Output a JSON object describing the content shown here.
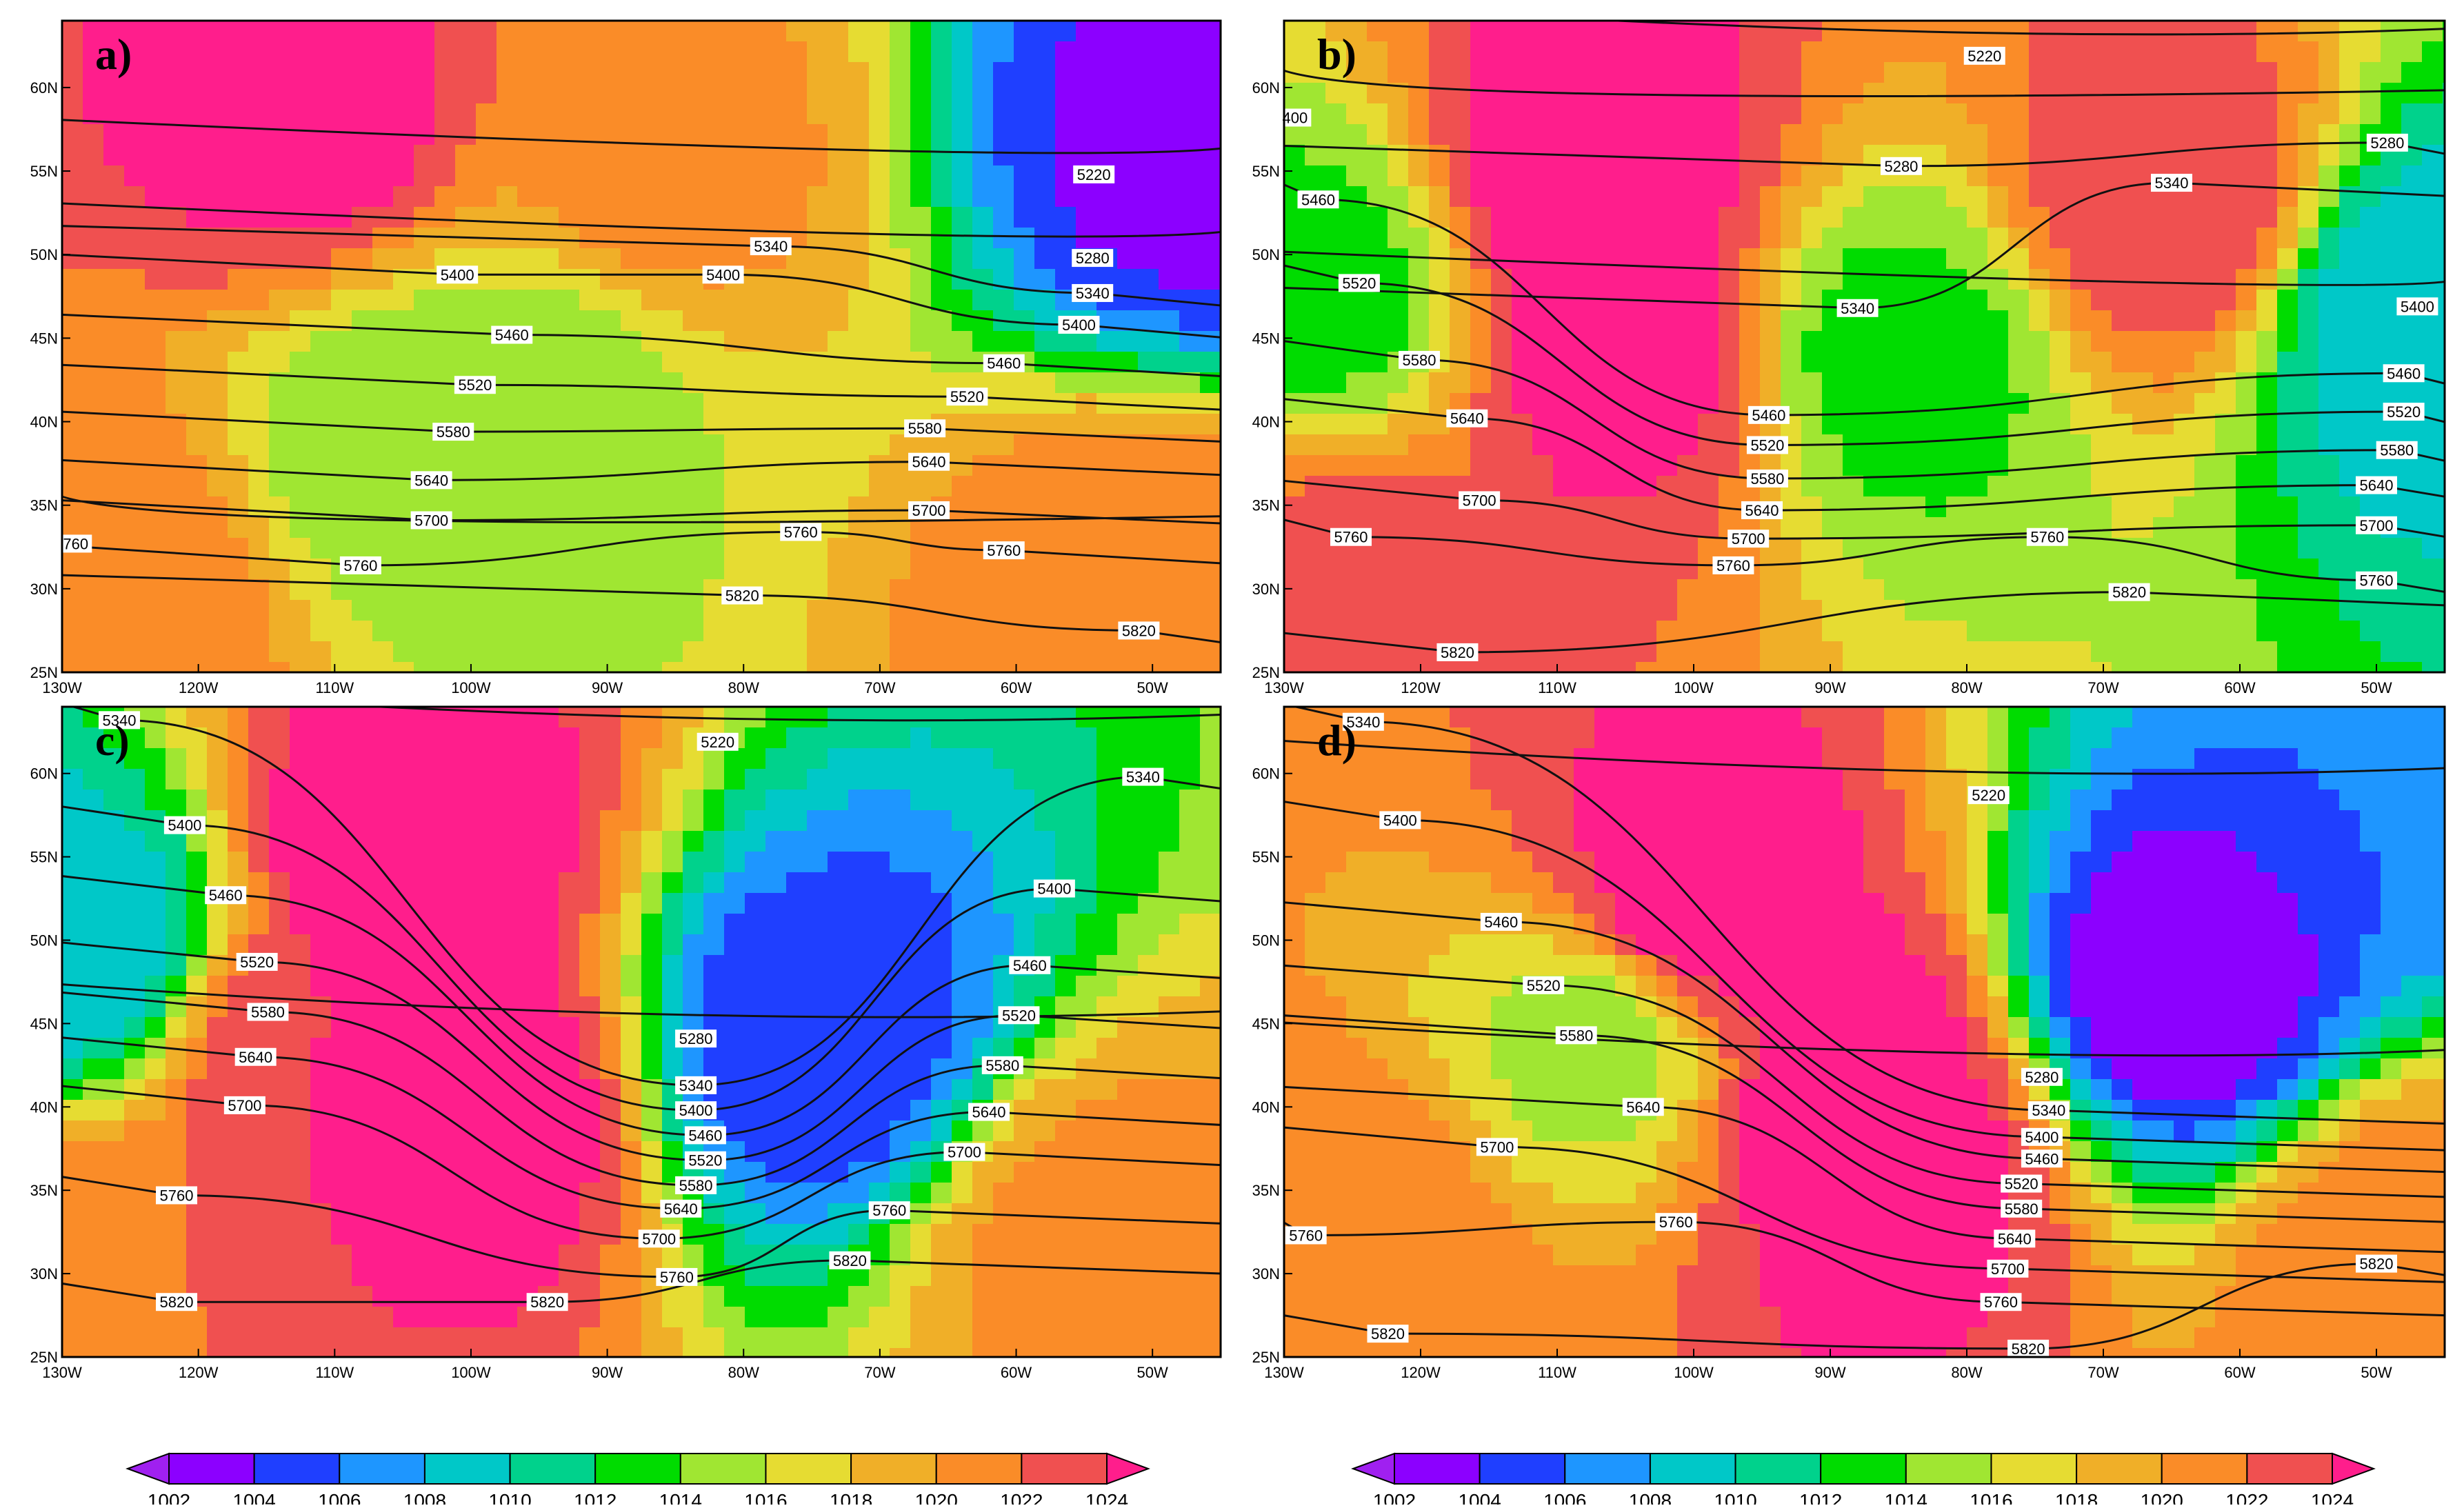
{
  "figure": {
    "panels": [
      {
        "id": "a",
        "label": "a)",
        "contour_labels": [
          "5220",
          "5340",
          "5400",
          "5400",
          "5280",
          "5340",
          "5400",
          "5460",
          "5460",
          "5520",
          "5520",
          "5580",
          "5580",
          "5640",
          "5640",
          "5700",
          "5700",
          "760",
          "5760",
          "5760",
          "5760",
          "5820",
          "5820"
        ],
        "contour_label_points": [
          {
            "text": "5220",
            "lon": -54.3,
            "lat": 54.8
          },
          {
            "text": "5340",
            "lon": -78.0,
            "lat": 50.5
          },
          {
            "text": "5400",
            "lon": -101.0,
            "lat": 48.8
          },
          {
            "text": "5400",
            "lon": -81.5,
            "lat": 48.8
          },
          {
            "text": "5280",
            "lon": -54.4,
            "lat": 49.8
          },
          {
            "text": "5340",
            "lon": -54.4,
            "lat": 47.7
          },
          {
            "text": "5400",
            "lon": -55.4,
            "lat": 45.8
          },
          {
            "text": "5460",
            "lon": -97.0,
            "lat": 45.2
          },
          {
            "text": "5460",
            "lon": -60.9,
            "lat": 43.5
          },
          {
            "text": "5520",
            "lon": -99.7,
            "lat": 42.2
          },
          {
            "text": "5520",
            "lon": -63.6,
            "lat": 41.5
          },
          {
            "text": "5580",
            "lon": -101.3,
            "lat": 39.4
          },
          {
            "text": "5580",
            "lon": -66.7,
            "lat": 39.6
          },
          {
            "text": "5640",
            "lon": -102.9,
            "lat": 36.5
          },
          {
            "text": "5640",
            "lon": -66.4,
            "lat": 37.6
          },
          {
            "text": "5700",
            "lon": -102.9,
            "lat": 34.1
          },
          {
            "text": "5700",
            "lon": -66.4,
            "lat": 34.7
          },
          {
            "text": "760",
            "lon": -129.0,
            "lat": 32.7
          },
          {
            "text": "5760",
            "lon": -108.1,
            "lat": 31.4
          },
          {
            "text": "5760",
            "lon": -75.8,
            "lat": 33.4
          },
          {
            "text": "5760",
            "lon": -60.9,
            "lat": 32.3
          },
          {
            "text": "5820",
            "lon": -80.1,
            "lat": 29.6
          },
          {
            "text": "5820",
            "lon": -51.0,
            "lat": 27.5
          }
        ],
        "pressure_centers": [
          {
            "kind": "high",
            "lon": -112,
            "lat": 58,
            "hpa": 1025
          },
          {
            "kind": "high",
            "lon": -87,
            "lat": 55,
            "hpa": 1021
          },
          {
            "kind": "low",
            "lon": -46,
            "lat": 56,
            "hpa": 1003
          },
          {
            "kind": "low",
            "lon": -104,
            "lat": 39,
            "hpa": 1014
          },
          {
            "kind": "low",
            "lon": -95,
            "lat": 42,
            "hpa": 1015
          },
          {
            "kind": "high",
            "lon": -127,
            "lat": 30,
            "hpa": 1022
          },
          {
            "kind": "high",
            "lon": -50,
            "lat": 30,
            "hpa": 1022
          }
        ]
      },
      {
        "id": "b",
        "label": "b)",
        "contour_labels": [
          "5220",
          "5280",
          "5280",
          "5340",
          "5340",
          "400",
          "5460",
          "5520",
          "5580",
          "5640",
          "5400",
          "5460",
          "5460",
          "5520",
          "5520",
          "5580",
          "5580",
          "5640",
          "5640",
          "5700",
          "5700",
          "5700",
          "5760",
          "5760",
          "5760",
          "5760",
          "5820",
          "5820"
        ],
        "contour_label_points": [
          {
            "text": "5220",
            "lon": -78.7,
            "lat": 61.9
          },
          {
            "text": "5280",
            "lon": -84.8,
            "lat": 55.3
          },
          {
            "text": "5280",
            "lon": -49.2,
            "lat": 56.7
          },
          {
            "text": "5340",
            "lon": -65.0,
            "lat": 54.3
          },
          {
            "text": "5340",
            "lon": -88.0,
            "lat": 46.8
          },
          {
            "text": "400",
            "lon": -129.2,
            "lat": 58.2
          },
          {
            "text": "5460",
            "lon": -127.5,
            "lat": 53.3
          },
          {
            "text": "5520",
            "lon": -124.5,
            "lat": 48.3
          },
          {
            "text": "5580",
            "lon": -120.1,
            "lat": 43.7
          },
          {
            "text": "5640",
            "lon": -116.6,
            "lat": 40.2
          },
          {
            "text": "5400",
            "lon": -47.0,
            "lat": 46.9
          },
          {
            "text": "5460",
            "lon": -94.5,
            "lat": 40.4
          },
          {
            "text": "5460",
            "lon": -48.0,
            "lat": 42.9
          },
          {
            "text": "5520",
            "lon": -94.6,
            "lat": 38.6
          },
          {
            "text": "5520",
            "lon": -48.0,
            "lat": 40.6
          },
          {
            "text": "5580",
            "lon": -94.6,
            "lat": 36.6
          },
          {
            "text": "5580",
            "lon": -48.5,
            "lat": 38.3
          },
          {
            "text": "5640",
            "lon": -95.0,
            "lat": 34.7
          },
          {
            "text": "5640",
            "lon": -50.0,
            "lat": 36.2
          },
          {
            "text": "5700",
            "lon": -115.7,
            "lat": 35.3
          },
          {
            "text": "5700",
            "lon": -96.0,
            "lat": 33.0
          },
          {
            "text": "5700",
            "lon": -50.0,
            "lat": 33.8
          },
          {
            "text": "5760",
            "lon": -125.1,
            "lat": 33.1
          },
          {
            "text": "5760",
            "lon": -97.1,
            "lat": 31.4
          },
          {
            "text": "5760",
            "lon": -74.1,
            "lat": 33.1
          },
          {
            "text": "5760",
            "lon": -50.0,
            "lat": 30.5
          },
          {
            "text": "5820",
            "lon": -68.1,
            "lat": 29.8
          },
          {
            "text": "5820",
            "lon": -117.3,
            "lat": 26.2
          }
        ],
        "pressure_centers": [
          {
            "kind": "high",
            "lon": -108,
            "lat": 54,
            "hpa": 1026
          },
          {
            "kind": "high",
            "lon": -105,
            "lat": 44,
            "hpa": 1025
          },
          {
            "kind": "high",
            "lon": -65,
            "lat": 53,
            "hpa": 1024
          },
          {
            "kind": "low",
            "lon": -85,
            "lat": 44,
            "hpa": 1013
          },
          {
            "kind": "low",
            "lon": -47,
            "lat": 47,
            "hpa": 1008
          },
          {
            "kind": "low",
            "lon": -127,
            "lat": 48,
            "hpa": 1013
          },
          {
            "kind": "high",
            "lon": -125,
            "lat": 30,
            "hpa": 1023
          }
        ]
      },
      {
        "id": "c",
        "label": "c)",
        "contour_labels": [
          "5340",
          "5220",
          "5340",
          "5400",
          "5460",
          "5520",
          "5580",
          "5640",
          "5700",
          "5760",
          "5820",
          "5400",
          "5460",
          "5520",
          "5580",
          "5640",
          "5700",
          "5760",
          "5820",
          "5280",
          "5340",
          "5400",
          "5460",
          "5520",
          "5580",
          "5640",
          "5700",
          "5760",
          "5820"
        ],
        "contour_label_points": [
          {
            "text": "5340",
            "lon": -125.8,
            "lat": 63.2
          },
          {
            "text": "5220",
            "lon": -81.9,
            "lat": 61.9
          },
          {
            "text": "5340",
            "lon": -50.7,
            "lat": 59.8
          },
          {
            "text": "5400",
            "lon": -121.0,
            "lat": 56.9
          },
          {
            "text": "5460",
            "lon": -118.0,
            "lat": 52.7
          },
          {
            "text": "5520",
            "lon": -115.7,
            "lat": 48.7
          },
          {
            "text": "5580",
            "lon": -114.9,
            "lat": 45.7
          },
          {
            "text": "5640",
            "lon": -115.8,
            "lat": 43.0
          },
          {
            "text": "5700",
            "lon": -116.6,
            "lat": 40.1
          },
          {
            "text": "5760",
            "lon": -121.6,
            "lat": 34.7
          },
          {
            "text": "5820",
            "lon": -121.6,
            "lat": 28.3
          },
          {
            "text": "5400",
            "lon": -57.2,
            "lat": 53.1
          },
          {
            "text": "5460",
            "lon": -59.0,
            "lat": 48.5
          },
          {
            "text": "5520",
            "lon": -59.8,
            "lat": 45.5
          },
          {
            "text": "5580",
            "lon": -61.0,
            "lat": 42.5
          },
          {
            "text": "5640",
            "lon": -62.0,
            "lat": 39.7
          },
          {
            "text": "5700",
            "lon": -63.8,
            "lat": 37.3
          },
          {
            "text": "5760",
            "lon": -69.3,
            "lat": 33.8
          },
          {
            "text": "5820",
            "lon": -72.2,
            "lat": 30.8
          },
          {
            "text": "5280",
            "lon": -83.5,
            "lat": 44.1
          },
          {
            "text": "5340",
            "lon": -83.5,
            "lat": 41.3
          },
          {
            "text": "5400",
            "lon": -83.5,
            "lat": 39.8
          },
          {
            "text": "5460",
            "lon": -82.8,
            "lat": 38.3
          },
          {
            "text": "5520",
            "lon": -82.8,
            "lat": 36.8
          },
          {
            "text": "5580",
            "lon": -83.5,
            "lat": 35.3
          },
          {
            "text": "5640",
            "lon": -84.6,
            "lat": 33.9
          },
          {
            "text": "5700",
            "lon": -86.2,
            "lat": 32.1
          },
          {
            "text": "5760",
            "lon": -84.9,
            "lat": 29.8
          },
          {
            "text": "5820",
            "lon": -94.4,
            "lat": 28.3
          }
        ],
        "pressure_centers": [
          {
            "kind": "high",
            "lon": -105,
            "lat": 55,
            "hpa": 1026
          },
          {
            "kind": "high",
            "lon": -100,
            "lat": 40,
            "hpa": 1026
          },
          {
            "kind": "high",
            "lon": -112,
            "lat": 43,
            "hpa": 1024
          },
          {
            "kind": "low",
            "lon": -75,
            "lat": 44,
            "hpa": 1004
          },
          {
            "kind": "low",
            "lon": -129,
            "lat": 50,
            "hpa": 1008
          },
          {
            "kind": "high",
            "lon": -127,
            "lat": 30,
            "hpa": 1022
          },
          {
            "kind": "high",
            "lon": -54,
            "lat": 32,
            "hpa": 1021
          }
        ]
      },
      {
        "id": "d",
        "label": "d)",
        "contour_labels": [
          "5340",
          "5220",
          "5400",
          "5460",
          "5520",
          "5580",
          "5640",
          "5700",
          "5760",
          "5760",
          "5820",
          "5820",
          "5280",
          "5340",
          "5400",
          "5460",
          "5520",
          "5580",
          "5640",
          "5700",
          "5760",
          "5820"
        ],
        "contour_label_points": [
          {
            "text": "5340",
            "lon": -124.2,
            "lat": 63.1
          },
          {
            "text": "5220",
            "lon": -78.4,
            "lat": 58.7
          },
          {
            "text": "5400",
            "lon": -121.5,
            "lat": 57.2
          },
          {
            "text": "5460",
            "lon": -114.1,
            "lat": 51.1
          },
          {
            "text": "5520",
            "lon": -111.0,
            "lat": 47.3
          },
          {
            "text": "5580",
            "lon": -108.6,
            "lat": 44.3
          },
          {
            "text": "5640",
            "lon": -103.7,
            "lat": 40.0
          },
          {
            "text": "5700",
            "lon": -114.4,
            "lat": 37.6
          },
          {
            "text": "5760",
            "lon": -101.3,
            "lat": 33.1
          },
          {
            "text": "5760",
            "lon": -128.4,
            "lat": 32.3
          },
          {
            "text": "5820",
            "lon": -122.4,
            "lat": 26.4
          },
          {
            "text": "5820",
            "lon": -50.0,
            "lat": 30.6
          },
          {
            "text": "5280",
            "lon": -74.5,
            "lat": 41.8
          },
          {
            "text": "5340",
            "lon": -74.0,
            "lat": 39.8
          },
          {
            "text": "5400",
            "lon": -74.5,
            "lat": 38.2
          },
          {
            "text": "5460",
            "lon": -74.5,
            "lat": 36.9
          },
          {
            "text": "5520",
            "lon": -76.0,
            "lat": 35.4
          },
          {
            "text": "5580",
            "lon": -76.0,
            "lat": 33.9
          },
          {
            "text": "5640",
            "lon": -76.5,
            "lat": 32.1
          },
          {
            "text": "5700",
            "lon": -77.0,
            "lat": 30.3
          },
          {
            "text": "5760",
            "lon": -77.5,
            "lat": 28.3
          },
          {
            "text": "5820",
            "lon": -75.5,
            "lat": 25.5
          }
        ],
        "pressure_centers": [
          {
            "kind": "high",
            "lon": -100,
            "lat": 52,
            "hpa": 1026
          },
          {
            "kind": "high",
            "lon": -88,
            "lat": 42,
            "hpa": 1026
          },
          {
            "kind": "high",
            "lon": -85,
            "lat": 36,
            "hpa": 1025
          },
          {
            "kind": "low",
            "lon": -65,
            "lat": 47,
            "hpa": 1002
          },
          {
            "kind": "low",
            "lon": -107,
            "lat": 44,
            "hpa": 1015
          },
          {
            "kind": "low",
            "lon": -46,
            "lat": 60,
            "hpa": 1006
          },
          {
            "kind": "high",
            "lon": -125,
            "lat": 32,
            "hpa": 1022
          },
          {
            "kind": "high",
            "lon": -48,
            "lat": 31,
            "hpa": 1022
          }
        ]
      }
    ],
    "axes": {
      "lon_range": [
        -130,
        -45
      ],
      "lat_range": [
        25,
        64
      ],
      "lon_ticks": [
        "130W",
        "120W",
        "110W",
        "100W",
        "90W",
        "80W",
        "70W",
        "60W",
        "50W"
      ],
      "lon_tick_values": [
        -130,
        -120,
        -110,
        -100,
        -90,
        -80,
        -70,
        -60,
        -50
      ],
      "lat_ticks": [
        "25N",
        "30N",
        "35N",
        "40N",
        "45N",
        "50N",
        "55N",
        "60N"
      ],
      "lat_tick_values": [
        25,
        30,
        35,
        40,
        45,
        50,
        55,
        60
      ]
    },
    "colorbar": {
      "labels": [
        "1002",
        "1004",
        "1006",
        "1008",
        "1010",
        "1012",
        "1014",
        "1016",
        "1018",
        "1020",
        "1022",
        "1024"
      ],
      "colors": [
        "#a020f0",
        "#8c00ff",
        "#1f3fff",
        "#1e96ff",
        "#00c8c8",
        "#00d28c",
        "#00dc00",
        "#a0e632",
        "#e6dc32",
        "#f0af28",
        "#fa8c28",
        "#f05050",
        "#ff1e8c"
      ]
    }
  }
}
